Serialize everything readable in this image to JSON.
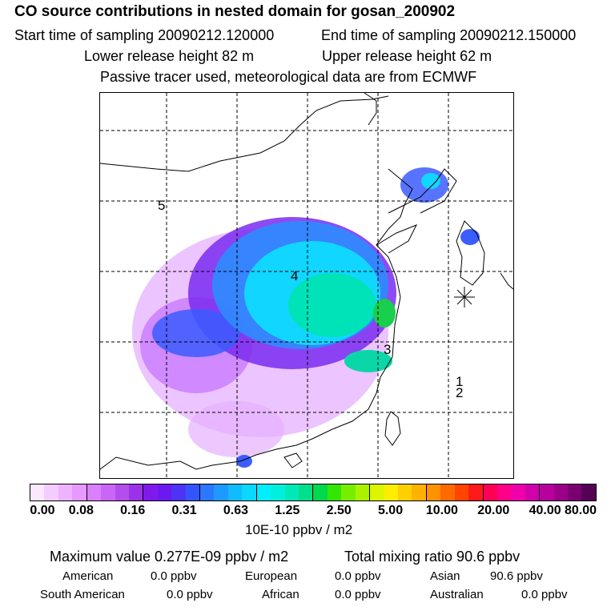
{
  "header": {
    "title": "CO  source contributions in nested domain for gosan_200902",
    "start_time": "Start time of sampling 20090212.120000",
    "end_time": "End time of sampling 20090212.150000",
    "lower_release": "Lower release height   82 m",
    "upper_release": "Upper release height   62 m",
    "passive_note": "Passive tracer used, meteorological data are from ECMWF"
  },
  "map": {
    "grid_labels": [
      "5",
      "4",
      "3",
      "1",
      "2"
    ],
    "receptor_marker": "asterisk"
  },
  "colorbar": {
    "colors": [
      "#fbe8ff",
      "#f4ccff",
      "#edb3ff",
      "#e699ff",
      "#d97fff",
      "#c966f5",
      "#b44cee",
      "#9a33e6",
      "#7f1aee",
      "#6a1af0",
      "#4d33f5",
      "#3355ff",
      "#2a78ff",
      "#1e99ff",
      "#11bbff",
      "#0ad8ff",
      "#00eeff",
      "#00f0dd",
      "#00e8b8",
      "#00e08a",
      "#00d84d",
      "#33e600",
      "#77ee00",
      "#aaf200",
      "#ddf500",
      "#ffee00",
      "#ffd000",
      "#ffb300",
      "#ff9200",
      "#ff6a00",
      "#ff4400",
      "#ff1a1a",
      "#ff0055",
      "#ff0088",
      "#ee00aa",
      "#d100aa",
      "#b8009e",
      "#9a0088",
      "#7a0070",
      "#550055"
    ],
    "tick_labels": [
      "0.00",
      "0.08",
      "0.16",
      "0.31",
      "0.63",
      "1.25",
      "2.50",
      "5.00",
      "10.00",
      "20.00",
      "40.00",
      "80.00"
    ],
    "units": "10E-10 ppbv / m2"
  },
  "summary": {
    "maximum": "Maximum value  0.277E-09 ppbv / m2",
    "total": "Total mixing ratio      90.6 ppbv",
    "regions": [
      {
        "name": "American",
        "value": "0.0 ppbv"
      },
      {
        "name": "European",
        "value": "0.0 ppbv"
      },
      {
        "name": "Asian",
        "value": "90.6 ppbv"
      },
      {
        "name": "South American",
        "value": "0.0 ppbv"
      },
      {
        "name": "African",
        "value": "0.0 ppbv"
      },
      {
        "name": "Australian",
        "value": "0.0 ppbv"
      }
    ]
  }
}
